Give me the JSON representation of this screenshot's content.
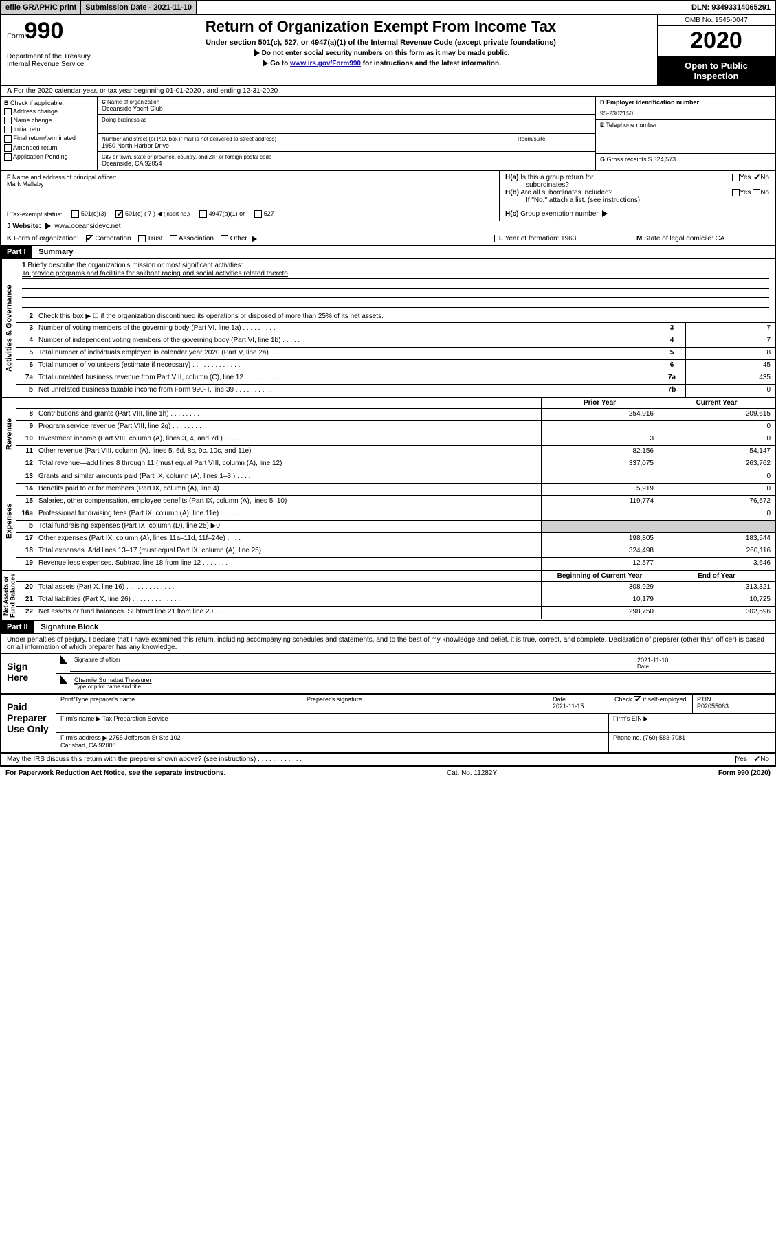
{
  "top_bar": {
    "efile": "efile GRAPHIC print",
    "sub_date_label": "Submission Date - 2021-11-10",
    "dln": "DLN: 93493314065291"
  },
  "header": {
    "form_label": "Form",
    "form_num": "990",
    "dept": "Department of the Treasury\nInternal Revenue Service",
    "title": "Return of Organization Exempt From Income Tax",
    "subtitle": "Under section 501(c), 527, or 4947(a)(1) of the Internal Revenue Code (except private foundations)",
    "line1": "Do not enter social security numbers on this form as it may be made public.",
    "line2_pre": "Go to ",
    "line2_link": "www.irs.gov/Form990",
    "line2_post": " for instructions and the latest information.",
    "omb": "OMB No. 1545-0047",
    "year": "2020",
    "open_pub": "Open to Public\nInspection"
  },
  "row_A": "For the 2020 calendar year, or tax year beginning 01-01-2020    , and ending 12-31-2020",
  "section_B": {
    "check_label": "Check if applicable:",
    "opts": [
      "Address change",
      "Name change",
      "Initial return",
      "Final return/terminated",
      "Amended return",
      "Application Pending"
    ],
    "C_label": "Name of organization",
    "C_val": "Oceanside Yacht Club",
    "dba_label": "Doing business as",
    "addr_label": "Number and street (or P.O. box if mail is not delivered to street address)",
    "addr_val": "1950 North Harbor Drive",
    "room_label": "Room/suite",
    "city_label": "City or town, state or province, country, and ZIP or foreign postal code",
    "city_val": "Oceanside, CA  92054",
    "D_label": "Employer identification number",
    "D_val": "95-2302150",
    "E_label": "Telephone number",
    "G_label": "Gross receipts $ 324,573"
  },
  "row_F": {
    "F_label": "Name and address of principal officer:",
    "F_val": "Mark Mallaby",
    "Ha_label": "Is this a group return for",
    "Ha_sub": "subordinates?",
    "Hb_label": "Are all subordinates included?",
    "Hb_note": "If \"No,\" attach a list. (see instructions)",
    "Hc_label": "Group exemption number"
  },
  "tax_status": {
    "label": "Tax-exempt status:",
    "o1": "501(c)(3)",
    "o2": "501(c) ( 7 )",
    "o2_note": "(insert no.)",
    "o3": "4947(a)(1) or",
    "o4": "527"
  },
  "row_J": {
    "label": "Website:",
    "val": "www.oceansideyc.net"
  },
  "row_K": {
    "label": "Form of organization:",
    "opts": [
      "Corporation",
      "Trust",
      "Association",
      "Other"
    ],
    "L_label": "Year of formation: 1963",
    "M_label": "State of legal domicile: CA"
  },
  "part1": {
    "header": "Part I",
    "title": "Summary",
    "sections": {
      "gov": {
        "label": "Activities & Governance",
        "l1_label": "Briefly describe the organization's mission or most significant activities:",
        "l1_val": "To provide programs and facilities for sailboat racing and social activities related thereto",
        "l2": "Check this box ▶ ☐  if the organization discontinued its operations or disposed of more than 25% of its net assets.",
        "lines": [
          {
            "n": "3",
            "d": "Number of voting members of the governing body (Part VI, line 1a)  .    .    .    .    .    .    .    .    .",
            "b": "3",
            "v": "7"
          },
          {
            "n": "4",
            "d": "Number of independent voting members of the governing body (Part VI, line 1b)  .    .    .    .    .",
            "b": "4",
            "v": "7"
          },
          {
            "n": "5",
            "d": "Total number of individuals employed in calendar year 2020 (Part V, line 2a)  .    .    .    .    .    .",
            "b": "5",
            "v": "8"
          },
          {
            "n": "6",
            "d": "Total number of volunteers (estimate if necessary)  .    .    .    .    .    .    .    .    .    .    .    .    .",
            "b": "6",
            "v": "45"
          },
          {
            "n": "7a",
            "d": "Total unrelated business revenue from Part VIII, column (C), line 12  .    .    .    .    .    .    .    .    .",
            "b": "7a",
            "v": "435"
          },
          {
            "n": "b",
            "d": "Net unrelated business taxable income from Form 990-T, line 39  .    .    .    .    .    .    .    .    .    .",
            "b": "7b",
            "v": "0"
          }
        ]
      },
      "rev": {
        "label": "Revenue",
        "header_prior": "Prior Year",
        "header_curr": "Current Year",
        "lines": [
          {
            "n": "8",
            "d": "Contributions and grants (Part VIII, line 1h)  .    .    .    .    .    .    .    .",
            "p": "254,916",
            "c": "209,615"
          },
          {
            "n": "9",
            "d": "Program service revenue (Part VIII, line 2g)  .    .    .    .    .    .    .    .",
            "p": "",
            "c": "0"
          },
          {
            "n": "10",
            "d": "Investment income (Part VIII, column (A), lines 3, 4, and 7d )  .    .    .    .",
            "p": "3",
            "c": "0"
          },
          {
            "n": "11",
            "d": "Other revenue (Part VIII, column (A), lines 5, 6d, 8c, 9c, 10c, and 11e)",
            "p": "82,156",
            "c": "54,147"
          },
          {
            "n": "12",
            "d": "Total revenue—add lines 8 through 11 (must equal Part VIII, column (A), line 12)",
            "p": "337,075",
            "c": "263,762"
          }
        ]
      },
      "exp": {
        "label": "Expenses",
        "lines": [
          {
            "n": "13",
            "d": "Grants and similar amounts paid (Part IX, column (A), lines 1–3 )  .    .    .    .",
            "p": "",
            "c": "0"
          },
          {
            "n": "14",
            "d": "Benefits paid to or for members (Part IX, column (A), line 4)  .    .    .    .    .",
            "p": "5,919",
            "c": "0"
          },
          {
            "n": "15",
            "d": "Salaries, other compensation, employee benefits (Part IX, column (A), lines 5–10)",
            "p": "119,774",
            "c": "76,572"
          },
          {
            "n": "16a",
            "d": "Professional fundraising fees (Part IX, column (A), line 11e)  .    .    .    .    .",
            "p": "",
            "c": "0"
          },
          {
            "n": "b",
            "d": "Total fundraising expenses (Part IX, column (D), line 25) ▶0",
            "p": "shaded",
            "c": "shaded"
          },
          {
            "n": "17",
            "d": "Other expenses (Part IX, column (A), lines 11a–11d, 11f–24e)  .    .    .    .",
            "p": "198,805",
            "c": "183,544"
          },
          {
            "n": "18",
            "d": "Total expenses. Add lines 13–17 (must equal Part IX, column (A), line 25)",
            "p": "324,498",
            "c": "260,116"
          },
          {
            "n": "19",
            "d": "Revenue less expenses. Subtract line 18 from line 12  .    .    .    .    .    .    .",
            "p": "12,577",
            "c": "3,646"
          }
        ]
      },
      "net": {
        "label": "Net Assets or\nFund Balances",
        "header_prior": "Beginning of Current Year",
        "header_curr": "End of Year",
        "lines": [
          {
            "n": "20",
            "d": "Total assets (Part X, line 16)  .    .    .    .    .    .    .    .    .    .    .    .    .    .",
            "p": "308,929",
            "c": "313,321"
          },
          {
            "n": "21",
            "d": "Total liabilities (Part X, line 26)  .    .    .    .    .    .    .    .    .    .    .    .    .",
            "p": "10,179",
            "c": "10,725"
          },
          {
            "n": "22",
            "d": "Net assets or fund balances. Subtract line 21 from line 20  .    .    .    .    .    .",
            "p": "298,750",
            "c": "302,596"
          }
        ]
      }
    }
  },
  "part2": {
    "header": "Part II",
    "title": "Signature Block",
    "declaration": "Under penalties of perjury, I declare that I have examined this return, including accompanying schedules and statements, and to the best of my knowledge and belief, it is true, correct, and complete. Declaration of preparer (other than officer) is based on all information of which preparer has any knowledge."
  },
  "sign_here": {
    "label": "Sign\nHere",
    "sig_of_officer": "Signature of officer",
    "date": "2021-11-10",
    "date_label": "Date",
    "name": "Chamile Sumabat Treasurer",
    "name_label": "Type or print name and title"
  },
  "paid_prep": {
    "label": "Paid\nPreparer\nUse Only",
    "r1": {
      "c1": "Print/Type preparer's name",
      "c2": "Preparer's signature",
      "c3": "Date\n2021-11-15",
      "c4": "Check ☑ if self-employed",
      "c5": "PTIN\nP02055063"
    },
    "r2": {
      "c1": "Firm's name   ▶",
      "c2": "Tax Preparation Service",
      "c3": "Firm's EIN ▶"
    },
    "r3": {
      "c1": "Firm's address ▶",
      "c2": "2755 Jefferson St Ste 102\nCarlsbad, CA  92008",
      "c3": "Phone no. (760) 583-7081"
    }
  },
  "footer_q": "May the IRS discuss this return with the preparer shown above? (see instructions)  .    .    .    .    .    .    .    .    .    .    .    .",
  "footer_bottom": {
    "left": "For Paperwork Reduction Act Notice, see the separate instructions.",
    "mid": "Cat. No. 11282Y",
    "right": "Form 990 (2020)"
  },
  "yes": "Yes",
  "no": "No"
}
